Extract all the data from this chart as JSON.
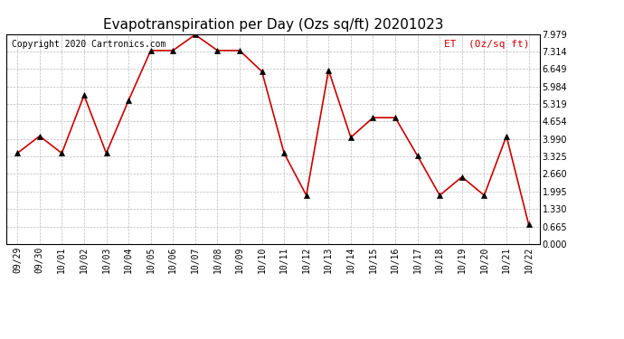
{
  "title": "Evapotranspiration per Day (Ozs sq/ft) 20201023",
  "copyright_text": "Copyright 2020 Cartronics.com",
  "legend_label": "ET  (0z/sq ft)",
  "x_labels": [
    "09/29",
    "09/30",
    "10/01",
    "10/02",
    "10/03",
    "10/04",
    "10/05",
    "10/06",
    "10/07",
    "10/08",
    "10/09",
    "10/10",
    "10/11",
    "10/12",
    "10/13",
    "10/14",
    "10/15",
    "10/16",
    "10/17",
    "10/18",
    "10/19",
    "10/20",
    "10/21",
    "10/22"
  ],
  "y_values": [
    3.45,
    4.1,
    3.45,
    5.65,
    3.45,
    5.45,
    7.35,
    7.35,
    7.95,
    7.35,
    7.35,
    6.55,
    3.45,
    1.85,
    6.6,
    4.05,
    4.8,
    4.8,
    3.35,
    1.85,
    2.55,
    1.85,
    4.1,
    0.75
  ],
  "line_color": "#cc0000",
  "marker": "^",
  "marker_color": "#000000",
  "bg_color": "#ffffff",
  "grid_color": "#bbbbbb",
  "ylim": [
    0.0,
    7.979
  ],
  "yticks": [
    0.0,
    0.665,
    1.33,
    1.995,
    2.66,
    3.325,
    3.99,
    4.654,
    5.319,
    5.984,
    6.649,
    7.314,
    7.979
  ],
  "title_fontsize": 11,
  "copyright_fontsize": 7,
  "legend_fontsize": 8,
  "tick_fontsize": 7
}
